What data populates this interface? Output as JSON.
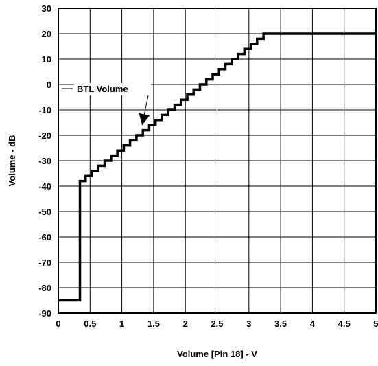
{
  "chart_data": {
    "type": "line",
    "xlabel": "Volume [Pin 18] - V",
    "ylabel": "Volume - dB",
    "xlim": [
      0,
      5
    ],
    "ylim": [
      -90,
      30
    ],
    "grid": true,
    "xticks": [
      0,
      0.5,
      1,
      1.5,
      2,
      2.5,
      3,
      3.5,
      4,
      4.5,
      5
    ],
    "xtick_labels": [
      "0",
      "0.5",
      "1",
      "1.5",
      "2",
      "2.5",
      "3",
      "3.5",
      "4",
      "4.5",
      "5"
    ],
    "yticks": [
      30,
      20,
      10,
      0,
      -10,
      -20,
      -30,
      -40,
      -50,
      -60,
      -70,
      -80,
      -90
    ],
    "ytick_labels": [
      "30",
      "20",
      "10",
      "0",
      "-10",
      "-20",
      "-30",
      "-40",
      "-50",
      "-60",
      "-70",
      "-80",
      "-90"
    ],
    "series": [
      {
        "name": "BTL Volume",
        "step_points": [
          [
            0,
            -85
          ],
          [
            0.34,
            -85
          ],
          [
            0.34,
            -38
          ],
          [
            0.43,
            -38
          ],
          [
            0.43,
            -36
          ],
          [
            0.53,
            -36
          ],
          [
            0.53,
            -34
          ],
          [
            0.63,
            -34
          ],
          [
            0.63,
            -32
          ],
          [
            0.73,
            -32
          ],
          [
            0.73,
            -30
          ],
          [
            0.83,
            -30
          ],
          [
            0.83,
            -28
          ],
          [
            0.93,
            -28
          ],
          [
            0.93,
            -26
          ],
          [
            1.03,
            -26
          ],
          [
            1.03,
            -24
          ],
          [
            1.13,
            -24
          ],
          [
            1.13,
            -22
          ],
          [
            1.23,
            -22
          ],
          [
            1.23,
            -20
          ],
          [
            1.33,
            -20
          ],
          [
            1.33,
            -18
          ],
          [
            1.43,
            -18
          ],
          [
            1.43,
            -16
          ],
          [
            1.53,
            -16
          ],
          [
            1.53,
            -14
          ],
          [
            1.63,
            -14
          ],
          [
            1.63,
            -12
          ],
          [
            1.73,
            -12
          ],
          [
            1.73,
            -10
          ],
          [
            1.83,
            -10
          ],
          [
            1.83,
            -8
          ],
          [
            1.93,
            -8
          ],
          [
            1.93,
            -6
          ],
          [
            2.03,
            -6
          ],
          [
            2.03,
            -4
          ],
          [
            2.13,
            -4
          ],
          [
            2.13,
            -2
          ],
          [
            2.23,
            -2
          ],
          [
            2.23,
            0
          ],
          [
            2.33,
            0
          ],
          [
            2.33,
            2
          ],
          [
            2.43,
            2
          ],
          [
            2.43,
            4
          ],
          [
            2.53,
            4
          ],
          [
            2.53,
            6
          ],
          [
            2.63,
            6
          ],
          [
            2.63,
            8
          ],
          [
            2.73,
            8
          ],
          [
            2.73,
            10
          ],
          [
            2.83,
            10
          ],
          [
            2.83,
            12
          ],
          [
            2.93,
            12
          ],
          [
            2.93,
            14
          ],
          [
            3.03,
            14
          ],
          [
            3.03,
            16
          ],
          [
            3.13,
            16
          ],
          [
            3.13,
            18
          ],
          [
            3.23,
            18
          ],
          [
            3.23,
            20
          ],
          [
            5.0,
            20
          ]
        ]
      }
    ],
    "annotation": {
      "text": "BTL Volume",
      "points_to": [
        1.32,
        -16
      ]
    }
  }
}
